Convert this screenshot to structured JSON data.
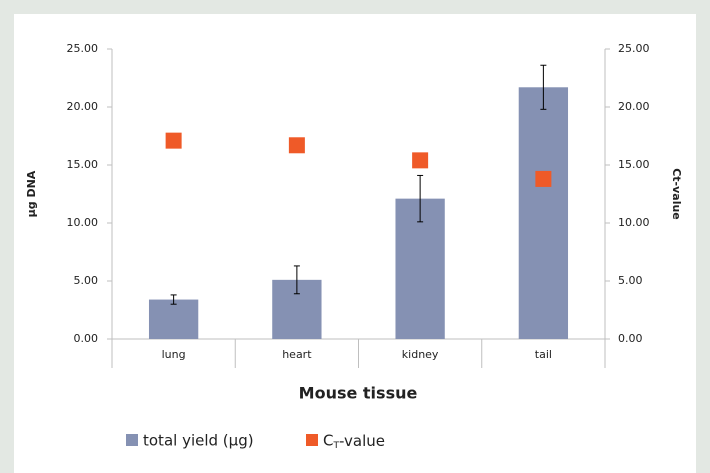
{
  "chart_data": {
    "type": "bar",
    "categories": [
      "lung",
      "heart",
      "kidney",
      "tail"
    ],
    "series": [
      {
        "name": "total yield (µg)",
        "type": "bar",
        "color": "#8591b3",
        "values": [
          3.4,
          5.1,
          12.1,
          21.7
        ],
        "error": [
          0.4,
          1.2,
          2.0,
          1.9
        ]
      },
      {
        "name": "CT-value",
        "type": "scatter",
        "axis": "y2",
        "color": "#ef5a28",
        "values": [
          17.1,
          16.7,
          15.4,
          13.8
        ]
      }
    ],
    "ylabel": "µg DNA",
    "y2label": "Ct-value",
    "xlabel": "Mouse tissue",
    "ylim": [
      0,
      25
    ],
    "yticks": [
      {
        "value": 0,
        "label": "0.00"
      },
      {
        "value": 5,
        "label": "5.00"
      },
      {
        "value": 10,
        "label": "10.00"
      },
      {
        "value": 15,
        "label": "15.00"
      },
      {
        "value": 20,
        "label": "20.00"
      },
      {
        "value": 25,
        "label": "25.00"
      }
    ],
    "y2lim": [
      0,
      25
    ],
    "y2ticks": [
      {
        "value": 0,
        "label": "0.00"
      },
      {
        "value": 5,
        "label": "5.00"
      },
      {
        "value": 10,
        "label": "10.00"
      },
      {
        "value": 15,
        "label": "15.00"
      },
      {
        "value": 20,
        "label": "20.00"
      },
      {
        "value": 25,
        "label": "25.00"
      }
    ],
    "grid": false,
    "legend": "bottom"
  }
}
